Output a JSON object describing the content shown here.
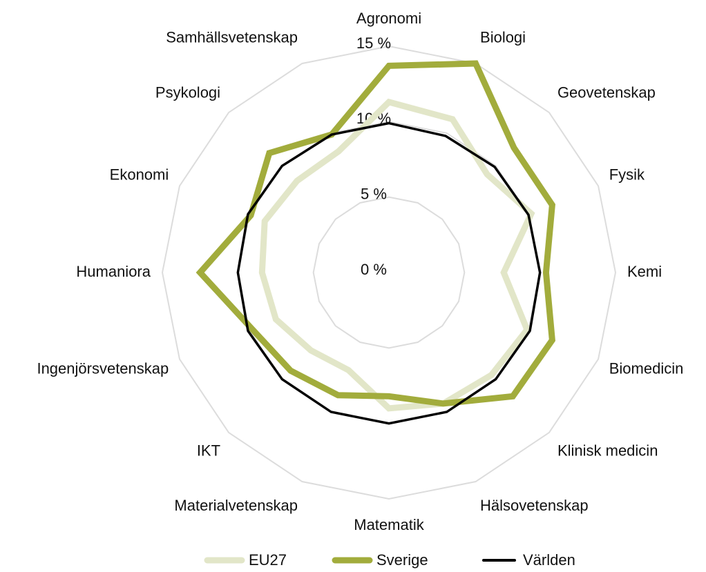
{
  "chart_data": {
    "type": "radar",
    "categories": [
      "Agronomi",
      "Biologi",
      "Geovetenskap",
      "Fysik",
      "Kemi",
      "Biomedicin",
      "Klinisk medicin",
      "Hälsovetenskap",
      "Matematik",
      "Materialvetenskap",
      "IKT",
      "Ingenjörsvetenskap",
      "Humaniora",
      "Ekonomi",
      "Psykologi",
      "Samhällsvetenskap"
    ],
    "series": [
      {
        "name": "EU27",
        "color": "#e2e6c8",
        "values": [
          11.3,
          11.0,
          9.2,
          10.2,
          7.6,
          9.9,
          9.6,
          9.4,
          9.0,
          7.0,
          7.3,
          8.1,
          8.4,
          8.9,
          8.6,
          8.7
        ]
      },
      {
        "name": "Sverige",
        "color": "#a2ac3c",
        "values": [
          13.7,
          15.0,
          11.7,
          11.7,
          10.4,
          11.7,
          11.6,
          9.4,
          8.2,
          8.8,
          9.2,
          9.8,
          12.5,
          9.9,
          11.2,
          9.9
        ]
      },
      {
        "name": "Världen",
        "color": "#000000",
        "values": [
          9.9,
          9.8,
          9.9,
          10.0,
          10.0,
          10.1,
          10.0,
          10.0,
          10.0,
          10.0,
          10.0,
          10.1,
          10.0,
          10.1,
          10.0,
          9.9
        ]
      }
    ],
    "ylim": [
      0,
      15
    ],
    "yticks": [
      {
        "value": 0,
        "label": "0 %"
      },
      {
        "value": 5,
        "label": "5 %"
      },
      {
        "value": 10,
        "label": "10 %"
      },
      {
        "value": 15,
        "label": "15 %"
      }
    ],
    "grid": true,
    "legend": "bottom"
  }
}
